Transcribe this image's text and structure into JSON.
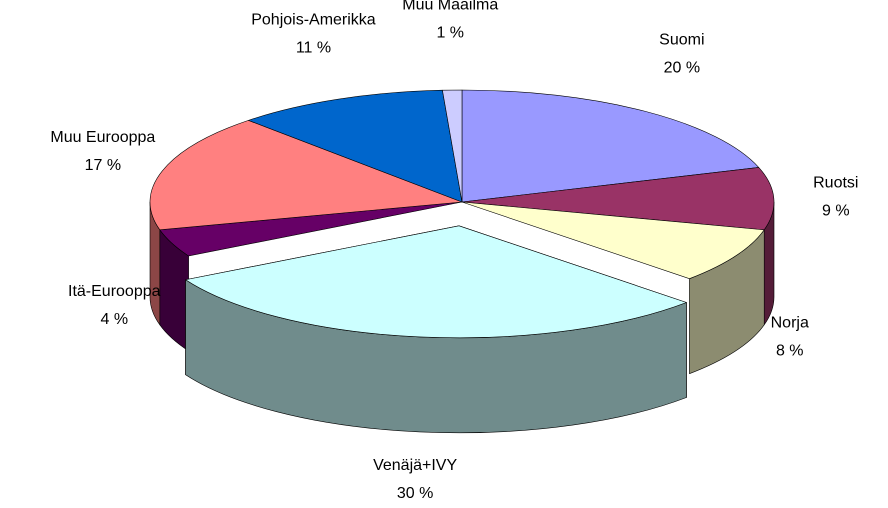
{
  "chart_data": {
    "type": "pie3d",
    "categories": [
      "Suomi",
      "Ruotsi",
      "Norja",
      "Venäjä+IVY",
      "Itä-Eurooppa",
      "Muu Eurooppa",
      "Pohjois-Amerikka",
      "Muu Maailma"
    ],
    "values": [
      20,
      9,
      8,
      30,
      4,
      17,
      11,
      1
    ],
    "value_labels": [
      "20 %",
      "9 %",
      "8 %",
      "30 %",
      "4 %",
      "17 %",
      "11 %",
      "1 %"
    ],
    "colors": [
      "#9999ff",
      "#993366",
      "#ffffcc",
      "#ccffff",
      "#660066",
      "#ff8080",
      "#0066cc",
      "#ccccff"
    ],
    "exploded": [
      3
    ]
  }
}
